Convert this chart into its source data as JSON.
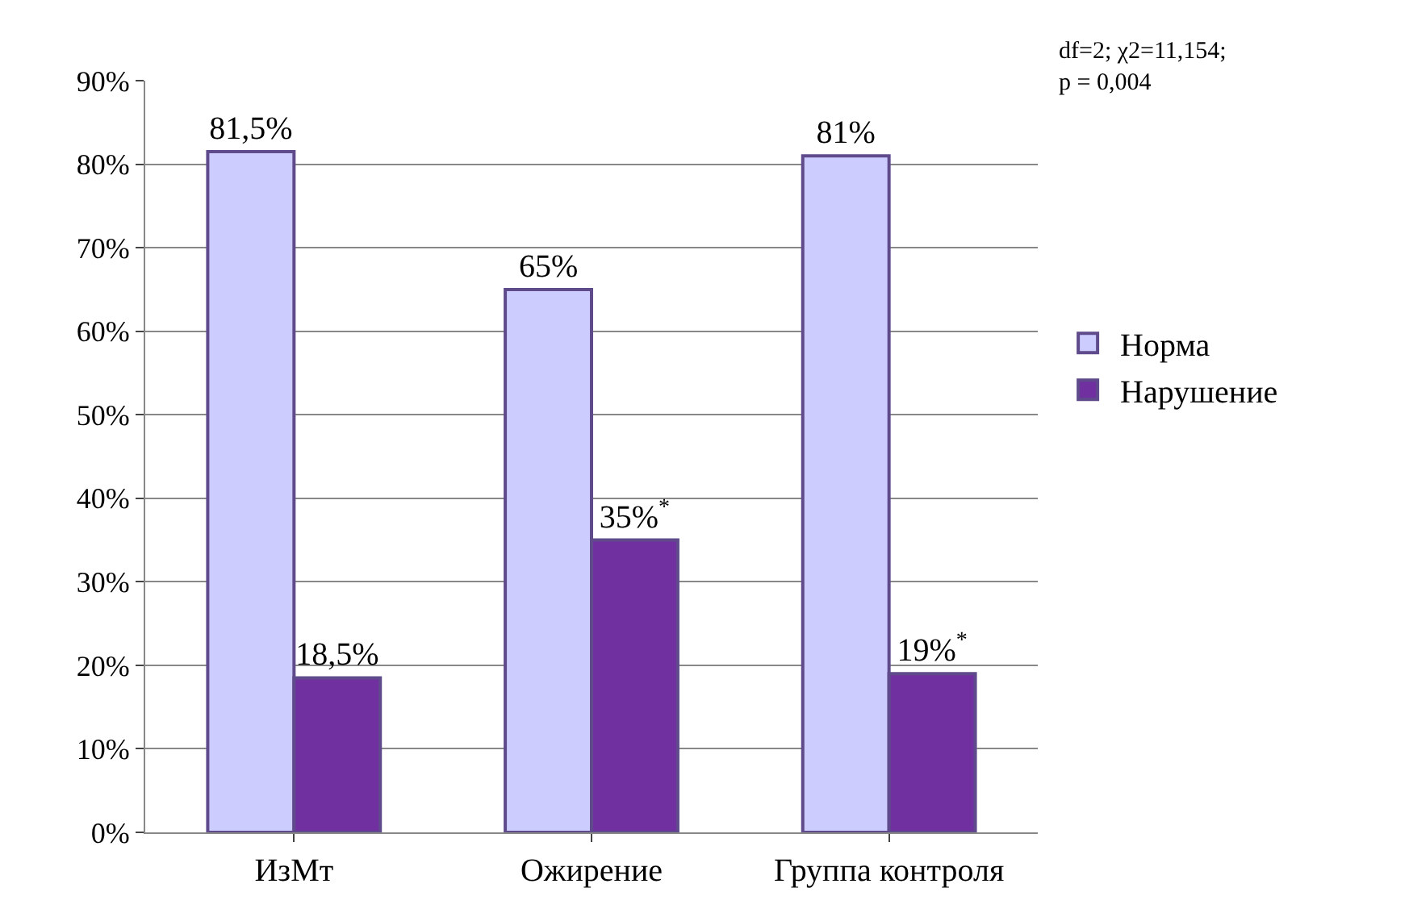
{
  "chart_data": {
    "type": "bar",
    "categories": [
      "ИзМт",
      "Ожирение",
      "Группа контроля"
    ],
    "series": [
      {
        "name": "Норма",
        "color": "#ccccff",
        "values": [
          81.5,
          65,
          81
        ],
        "value_labels": [
          "81,5%",
          "65%",
          "81%"
        ]
      },
      {
        "name": "Нарушение",
        "color": "#7030a0",
        "values": [
          18.5,
          35,
          19
        ],
        "value_labels": [
          "18,5%",
          "35%$^{*}$",
          "19%$^{*}$"
        ]
      }
    ],
    "ylim": [
      0,
      90
    ],
    "yticks": [
      {
        "value": 0,
        "label": "0%"
      },
      {
        "value": 10,
        "label": "10%"
      },
      {
        "value": 20,
        "label": "20%"
      },
      {
        "value": 30,
        "label": "30%"
      },
      {
        "value": 40,
        "label": "40%"
      },
      {
        "value": 50,
        "label": "50%"
      },
      {
        "value": 60,
        "label": "60%"
      },
      {
        "value": 70,
        "label": "70%"
      },
      {
        "value": 80,
        "label": "80%"
      },
      {
        "value": 90,
        "label": "90%"
      }
    ],
    "annotations": [
      "df=2; χ2=11,154;\np = 0,004"
    ],
    "grid": "y",
    "legend": "right"
  }
}
